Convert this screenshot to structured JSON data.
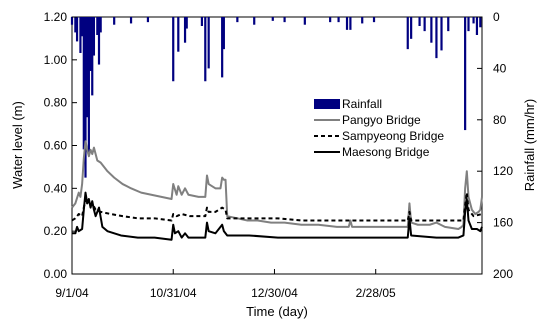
{
  "chart_data": {
    "type": "line",
    "xlabel": "Time (day)",
    "ylabel_left": "Water level (m)",
    "ylabel_right": "Rainfall (mm/hr)",
    "x_start": "2004-09-01",
    "x_end": "2005-05-02",
    "x_ticks": [
      {
        "date": "2004-09-01",
        "label": "9/1/04"
      },
      {
        "date": "2004-10-31",
        "label": "10/31/04"
      },
      {
        "date": "2004-12-30",
        "label": "12/30/04"
      },
      {
        "date": "2005-02-28",
        "label": "2/28/05"
      }
    ],
    "ylim_left": [
      0,
      1.2
    ],
    "yticks_left": [
      "0.00",
      "0.20",
      "0.40",
      "0.60",
      "0.80",
      "1.00",
      "1.20"
    ],
    "ylim_right": [
      0,
      200
    ],
    "yticks_right": [
      "0",
      "40",
      "80",
      "120",
      "160",
      "200"
    ],
    "right_axis_inverted": true,
    "legend_position": "right",
    "series": [
      {
        "name": "Rainfall",
        "kind": "bar",
        "axis": "right",
        "color": "#000080",
        "points": [
          [
            "2004-09-01",
            6
          ],
          [
            "2004-09-03",
            12
          ],
          [
            "2004-09-04",
            19
          ],
          [
            "2004-09-06",
            28
          ],
          [
            "2004-09-07",
            15
          ],
          [
            "2004-09-08",
            103
          ],
          [
            "2004-09-09",
            125
          ],
          [
            "2004-09-10",
            78
          ],
          [
            "2004-09-11",
            106
          ],
          [
            "2004-09-12",
            42
          ],
          [
            "2004-09-13",
            61
          ],
          [
            "2004-09-14",
            30
          ],
          [
            "2004-09-16",
            14
          ],
          [
            "2004-09-17",
            37
          ],
          [
            "2004-09-18",
            12
          ],
          [
            "2004-09-26",
            6
          ],
          [
            "2004-10-06",
            5
          ],
          [
            "2004-10-16",
            4
          ],
          [
            "2004-10-31",
            50
          ],
          [
            "2004-11-03",
            27
          ],
          [
            "2004-11-07",
            20
          ],
          [
            "2004-11-08",
            9
          ],
          [
            "2004-11-17",
            7
          ],
          [
            "2004-11-19",
            50
          ],
          [
            "2004-11-21",
            40
          ],
          [
            "2004-11-29",
            47
          ],
          [
            "2004-11-30",
            25
          ],
          [
            "2004-12-08",
            4
          ],
          [
            "2004-12-18",
            6
          ],
          [
            "2004-12-29",
            3
          ],
          [
            "2005-01-05",
            4
          ],
          [
            "2005-01-17",
            6
          ],
          [
            "2005-02-01",
            4
          ],
          [
            "2005-02-06",
            4
          ],
          [
            "2005-02-11",
            10
          ],
          [
            "2005-02-13",
            10
          ],
          [
            "2005-02-20",
            5
          ],
          [
            "2005-02-27",
            4
          ],
          [
            "2005-03-19",
            25
          ],
          [
            "2005-03-21",
            17
          ],
          [
            "2005-03-26",
            7
          ],
          [
            "2005-03-29",
            11
          ],
          [
            "2005-04-02",
            20
          ],
          [
            "2005-04-05",
            32
          ],
          [
            "2005-04-08",
            26
          ],
          [
            "2005-04-12",
            11
          ],
          [
            "2005-04-22",
            88
          ],
          [
            "2005-04-24",
            11
          ],
          [
            "2005-04-27",
            5
          ],
          [
            "2005-04-29",
            14
          ],
          [
            "2005-05-01",
            8
          ]
        ]
      },
      {
        "name": "Pangyo Bridge",
        "kind": "line",
        "axis": "left",
        "color": "#808080",
        "dash": "solid",
        "points": [
          [
            "2004-09-01",
            0.31
          ],
          [
            "2004-09-03",
            0.33
          ],
          [
            "2004-09-05",
            0.38
          ],
          [
            "2004-09-06",
            0.36
          ],
          [
            "2004-09-07",
            0.42
          ],
          [
            "2004-09-08",
            0.54
          ],
          [
            "2004-09-09",
            0.62
          ],
          [
            "2004-09-10",
            0.58
          ],
          [
            "2004-09-11",
            0.55
          ],
          [
            "2004-09-12",
            0.58
          ],
          [
            "2004-09-13",
            0.56
          ],
          [
            "2004-09-14",
            0.59
          ],
          [
            "2004-09-16",
            0.53
          ],
          [
            "2004-09-18",
            0.52
          ],
          [
            "2004-09-22",
            0.48
          ],
          [
            "2004-09-26",
            0.45
          ],
          [
            "2004-10-01",
            0.42
          ],
          [
            "2004-10-06",
            0.4
          ],
          [
            "2004-10-12",
            0.38
          ],
          [
            "2004-10-18",
            0.37
          ],
          [
            "2004-10-24",
            0.36
          ],
          [
            "2004-10-30",
            0.35
          ],
          [
            "2004-10-31",
            0.42
          ],
          [
            "2004-11-02",
            0.37
          ],
          [
            "2004-11-03",
            0.41
          ],
          [
            "2004-11-05",
            0.37
          ],
          [
            "2004-11-07",
            0.4
          ],
          [
            "2004-11-09",
            0.37
          ],
          [
            "2004-11-15",
            0.36
          ],
          [
            "2004-11-19",
            0.36
          ],
          [
            "2004-11-20",
            0.46
          ],
          [
            "2004-11-21",
            0.42
          ],
          [
            "2004-11-23",
            0.41
          ],
          [
            "2004-11-25",
            0.4
          ],
          [
            "2004-11-28",
            0.4
          ],
          [
            "2004-11-29",
            0.45
          ],
          [
            "2004-11-30",
            0.44
          ],
          [
            "2004-12-01",
            0.44
          ],
          [
            "2004-12-02",
            0.27
          ],
          [
            "2004-12-08",
            0.26
          ],
          [
            "2004-12-14",
            0.25
          ],
          [
            "2004-12-20",
            0.25
          ],
          [
            "2004-12-28",
            0.24
          ],
          [
            "2005-01-05",
            0.24
          ],
          [
            "2005-01-15",
            0.23
          ],
          [
            "2005-01-25",
            0.23
          ],
          [
            "2005-02-05",
            0.22
          ],
          [
            "2005-02-12",
            0.22
          ],
          [
            "2005-02-13",
            0.25
          ],
          [
            "2005-02-14",
            0.22
          ],
          [
            "2005-02-24",
            0.22
          ],
          [
            "2005-03-05",
            0.22
          ],
          [
            "2005-03-15",
            0.22
          ],
          [
            "2005-03-19",
            0.22
          ],
          [
            "2005-03-20",
            0.33
          ],
          [
            "2005-03-21",
            0.24
          ],
          [
            "2005-03-25",
            0.23
          ],
          [
            "2005-04-01",
            0.23
          ],
          [
            "2005-04-05",
            0.24
          ],
          [
            "2005-04-10",
            0.22
          ],
          [
            "2005-04-18",
            0.21
          ],
          [
            "2005-04-20",
            0.22
          ],
          [
            "2005-04-21",
            0.23
          ],
          [
            "2005-04-22",
            0.4
          ],
          [
            "2005-04-23",
            0.48
          ],
          [
            "2005-04-24",
            0.36
          ],
          [
            "2005-04-26",
            0.3
          ],
          [
            "2005-04-28",
            0.28
          ],
          [
            "2005-04-30",
            0.29
          ],
          [
            "2005-05-01",
            0.3
          ],
          [
            "2005-05-02",
            0.36
          ]
        ]
      },
      {
        "name": "Sampyeong Bridge",
        "kind": "line",
        "axis": "left",
        "color": "#000000",
        "dash": "dashed",
        "points": [
          [
            "2004-09-01",
            0.25
          ],
          [
            "2004-09-03",
            0.26
          ],
          [
            "2004-09-05",
            0.28
          ],
          [
            "2004-09-07",
            0.27
          ],
          [
            "2004-09-08",
            0.31
          ],
          [
            "2004-09-09",
            0.35
          ],
          [
            "2004-09-10",
            0.33
          ],
          [
            "2004-09-11",
            0.34
          ],
          [
            "2004-09-12",
            0.32
          ],
          [
            "2004-09-13",
            0.33
          ],
          [
            "2004-09-15",
            0.3
          ],
          [
            "2004-09-18",
            0.29
          ],
          [
            "2004-09-24",
            0.28
          ],
          [
            "2004-10-01",
            0.27
          ],
          [
            "2004-10-10",
            0.26
          ],
          [
            "2004-10-20",
            0.26
          ],
          [
            "2004-10-30",
            0.25
          ],
          [
            "2004-10-31",
            0.28
          ],
          [
            "2004-11-02",
            0.27
          ],
          [
            "2004-11-05",
            0.28
          ],
          [
            "2004-11-10",
            0.27
          ],
          [
            "2004-11-19",
            0.27
          ],
          [
            "2004-11-20",
            0.31
          ],
          [
            "2004-11-21",
            0.29
          ],
          [
            "2004-11-25",
            0.29
          ],
          [
            "2004-11-29",
            0.31
          ],
          [
            "2004-12-01",
            0.3
          ],
          [
            "2004-12-02",
            0.26
          ],
          [
            "2004-12-10",
            0.26
          ],
          [
            "2004-12-20",
            0.26
          ],
          [
            "2005-01-01",
            0.26
          ],
          [
            "2005-01-15",
            0.25
          ],
          [
            "2005-02-01",
            0.25
          ],
          [
            "2005-02-15",
            0.25
          ],
          [
            "2005-03-01",
            0.25
          ],
          [
            "2005-03-19",
            0.25
          ],
          [
            "2005-03-20",
            0.29
          ],
          [
            "2005-03-21",
            0.25
          ],
          [
            "2005-04-01",
            0.25
          ],
          [
            "2005-04-15",
            0.25
          ],
          [
            "2005-04-21",
            0.25
          ],
          [
            "2005-04-22",
            0.32
          ],
          [
            "2005-04-23",
            0.38
          ],
          [
            "2005-04-24",
            0.3
          ],
          [
            "2005-04-27",
            0.27
          ],
          [
            "2005-05-02",
            0.28
          ]
        ]
      },
      {
        "name": "Maesong Bridge",
        "kind": "line",
        "axis": "left",
        "color": "#000000",
        "dash": "solid",
        "points": [
          [
            "2004-09-01",
            0.19
          ],
          [
            "2004-09-03",
            0.19
          ],
          [
            "2004-09-04",
            0.22
          ],
          [
            "2004-09-05",
            0.2
          ],
          [
            "2004-09-07",
            0.21
          ],
          [
            "2004-09-08",
            0.3
          ],
          [
            "2004-09-09",
            0.38
          ],
          [
            "2004-09-10",
            0.33
          ],
          [
            "2004-09-11",
            0.35
          ],
          [
            "2004-09-12",
            0.31
          ],
          [
            "2004-09-13",
            0.34
          ],
          [
            "2004-09-14",
            0.3
          ],
          [
            "2004-09-15",
            0.27
          ],
          [
            "2004-09-17",
            0.31
          ],
          [
            "2004-09-19",
            0.22
          ],
          [
            "2004-09-22",
            0.2
          ],
          [
            "2004-09-30",
            0.18
          ],
          [
            "2004-10-10",
            0.17
          ],
          [
            "2004-10-20",
            0.17
          ],
          [
            "2004-10-30",
            0.16
          ],
          [
            "2004-10-31",
            0.23
          ],
          [
            "2004-11-01",
            0.19
          ],
          [
            "2004-11-03",
            0.2
          ],
          [
            "2004-11-05",
            0.17
          ],
          [
            "2004-11-07",
            0.19
          ],
          [
            "2004-11-09",
            0.17
          ],
          [
            "2004-11-18",
            0.17
          ],
          [
            "2004-11-19",
            0.17
          ],
          [
            "2004-11-20",
            0.24
          ],
          [
            "2004-11-21",
            0.2
          ],
          [
            "2004-11-25",
            0.19
          ],
          [
            "2004-11-29",
            0.23
          ],
          [
            "2004-11-30",
            0.2
          ],
          [
            "2004-12-02",
            0.18
          ],
          [
            "2004-12-15",
            0.18
          ],
          [
            "2005-01-01",
            0.17
          ],
          [
            "2005-01-20",
            0.17
          ],
          [
            "2005-02-10",
            0.17
          ],
          [
            "2005-03-01",
            0.17
          ],
          [
            "2005-03-19",
            0.17
          ],
          [
            "2005-03-20",
            0.26
          ],
          [
            "2005-03-21",
            0.18
          ],
          [
            "2005-04-05",
            0.17
          ],
          [
            "2005-04-18",
            0.17
          ],
          [
            "2005-04-21",
            0.18
          ],
          [
            "2005-04-22",
            0.29
          ],
          [
            "2005-04-23",
            0.35
          ],
          [
            "2005-04-24",
            0.25
          ],
          [
            "2005-04-26",
            0.21
          ],
          [
            "2005-04-29",
            0.21
          ],
          [
            "2005-05-01",
            0.2
          ],
          [
            "2005-05-02",
            0.22
          ]
        ]
      }
    ]
  }
}
